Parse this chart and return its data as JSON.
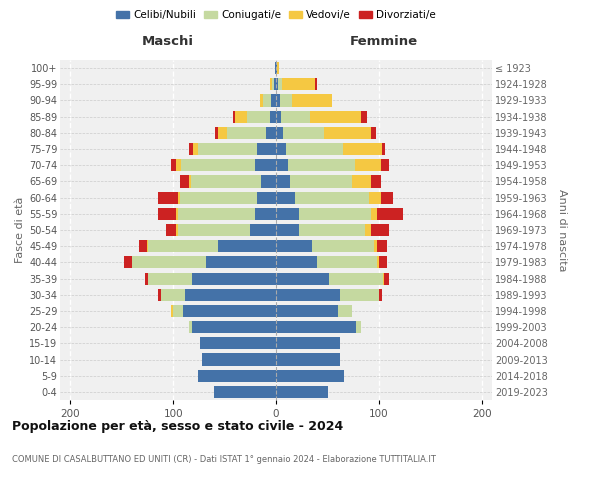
{
  "age_groups": [
    "100+",
    "95-99",
    "90-94",
    "85-89",
    "80-84",
    "75-79",
    "70-74",
    "65-69",
    "60-64",
    "55-59",
    "50-54",
    "45-49",
    "40-44",
    "35-39",
    "30-34",
    "25-29",
    "20-24",
    "15-19",
    "10-14",
    "5-9",
    "0-4"
  ],
  "birth_years": [
    "≤ 1923",
    "1924-1928",
    "1929-1933",
    "1934-1938",
    "1939-1943",
    "1944-1948",
    "1949-1953",
    "1954-1958",
    "1959-1963",
    "1964-1968",
    "1969-1973",
    "1974-1978",
    "1979-1983",
    "1984-1988",
    "1989-1993",
    "1994-1998",
    "1999-2003",
    "2004-2008",
    "2009-2013",
    "2014-2018",
    "2019-2023"
  ],
  "maschi": {
    "celibi": [
      1,
      2,
      5,
      6,
      10,
      18,
      20,
      15,
      18,
      20,
      25,
      56,
      68,
      82,
      88,
      90,
      82,
      74,
      72,
      76,
      60
    ],
    "coniugati": [
      0,
      2,
      8,
      22,
      38,
      58,
      72,
      68,
      75,
      75,
      70,
      68,
      72,
      42,
      24,
      10,
      3,
      0,
      0,
      0,
      0
    ],
    "vedovi": [
      0,
      2,
      3,
      12,
      8,
      5,
      5,
      2,
      2,
      2,
      2,
      1,
      0,
      0,
      0,
      2,
      0,
      0,
      0,
      0,
      0
    ],
    "divorziati": [
      0,
      0,
      0,
      2,
      3,
      4,
      5,
      8,
      20,
      18,
      10,
      8,
      8,
      3,
      3,
      0,
      0,
      0,
      0,
      0,
      0
    ]
  },
  "femmine": {
    "nubili": [
      1,
      2,
      4,
      5,
      7,
      10,
      12,
      14,
      18,
      22,
      22,
      35,
      40,
      52,
      62,
      60,
      78,
      62,
      62,
      66,
      51
    ],
    "coniugate": [
      0,
      4,
      12,
      28,
      40,
      55,
      65,
      60,
      72,
      70,
      65,
      60,
      58,
      52,
      38,
      14,
      5,
      0,
      0,
      0,
      0
    ],
    "vedove": [
      2,
      32,
      38,
      50,
      45,
      38,
      25,
      18,
      12,
      6,
      5,
      3,
      2,
      1,
      0,
      0,
      0,
      0,
      0,
      0,
      0
    ],
    "divorziate": [
      0,
      2,
      0,
      5,
      5,
      3,
      8,
      10,
      12,
      25,
      18,
      10,
      8,
      5,
      3,
      0,
      0,
      0,
      0,
      0,
      0
    ]
  },
  "colors": {
    "celibi": "#4472a8",
    "coniugati": "#c5d9a0",
    "vedovi": "#f5c842",
    "divorziati": "#cc2222"
  },
  "title": "Popolazione per età, sesso e stato civile - 2024",
  "subtitle": "COMUNE DI CASALBUTTANO ED UNITI (CR) - Dati ISTAT 1° gennaio 2024 - Elaborazione TUTTITALIA.IT",
  "ylabel_left": "Fasce di età",
  "ylabel_right": "Anni di nascita",
  "xlabel_maschi": "Maschi",
  "xlabel_femmine": "Femmine",
  "xlim": 210,
  "legend_labels": [
    "Celibi/Nubili",
    "Coniugati/e",
    "Vedovi/e",
    "Divorziati/e"
  ],
  "bg_plot": "#f0f0f0"
}
